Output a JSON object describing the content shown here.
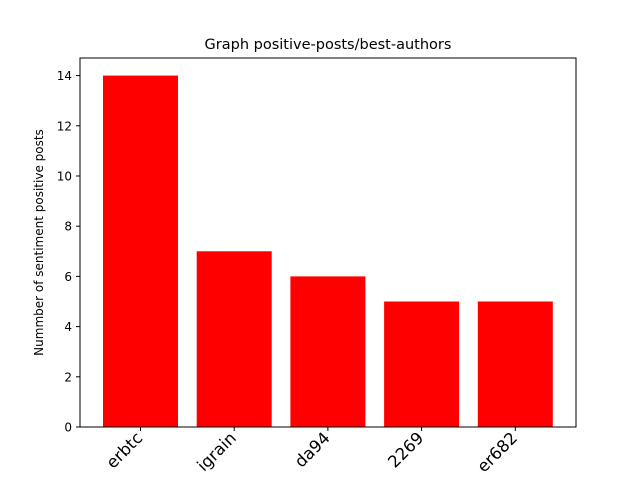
{
  "chart_data": {
    "type": "bar",
    "title": "Graph positive-posts/best-authors",
    "xlabel": "",
    "ylabel": "Nummber of sentiment positive posts",
    "categories": [
      "erbtc",
      "igrain",
      "da94",
      "2269",
      "er682"
    ],
    "values": [
      14,
      7,
      6,
      5,
      5
    ],
    "ylim": [
      0,
      14.7
    ],
    "yticks": [
      0,
      2,
      4,
      6,
      8,
      10,
      12,
      14
    ],
    "bar_color": "#ff0000",
    "grid": false,
    "legend": "none"
  }
}
